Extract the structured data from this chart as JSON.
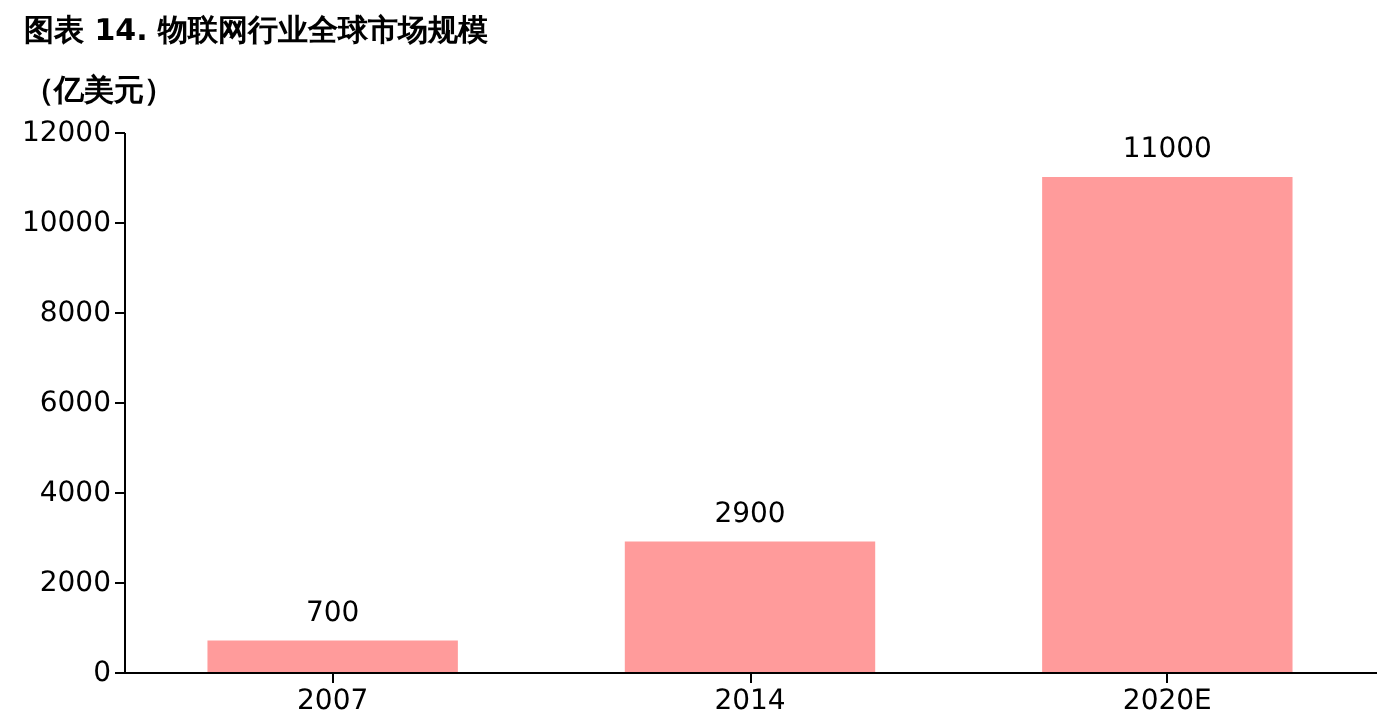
{
  "chart_data": {
    "type": "bar",
    "title": "图表 14. 物联网行业全球市场规模",
    "ylabel": "（亿美元）",
    "categories": [
      "2007",
      "2014",
      "2020E"
    ],
    "values": [
      700,
      2900,
      11000
    ],
    "colors": [
      "#ff9b9b",
      "#ff9b9b",
      "#ff9b9b"
    ],
    "ylim": [
      0,
      12000
    ],
    "yticks": [
      0,
      2000,
      4000,
      6000,
      8000,
      10000,
      12000
    ],
    "grid": false,
    "data_labels": true
  }
}
